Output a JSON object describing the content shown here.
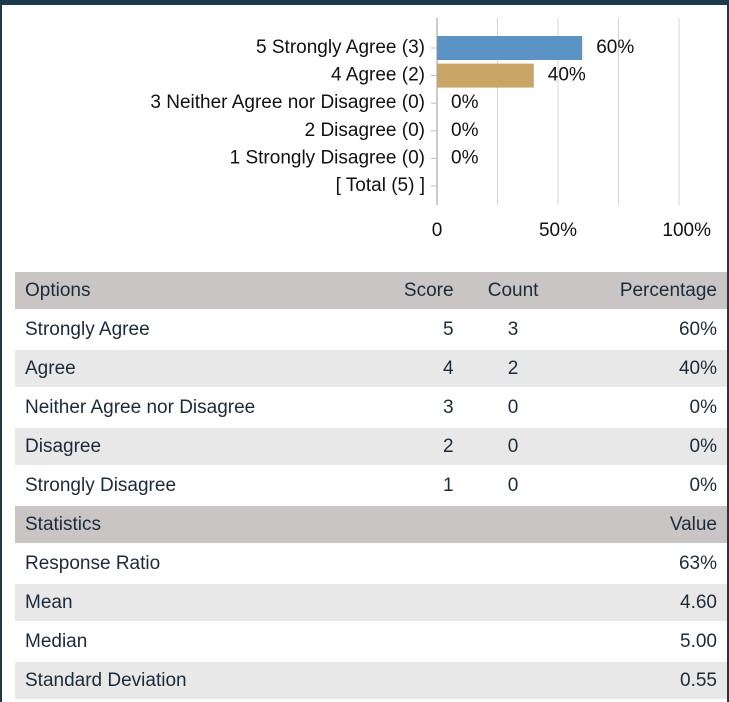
{
  "chart_data": {
    "type": "bar",
    "orientation": "horizontal",
    "categories": [
      "5 Strongly Agree (3)",
      "4 Agree (2)",
      "3 Neither Agree nor Disagree (0)",
      "2 Disagree (0)",
      "1 Strongly Disagree (0)",
      "[ Total (5) ]"
    ],
    "values": [
      60,
      40,
      0,
      0,
      0,
      null
    ],
    "value_labels": [
      "60%",
      "40%",
      "0%",
      "0%",
      "0%",
      null
    ],
    "colors": [
      "#5b93c4",
      "#c9a567",
      "#5b93c4",
      "#5b93c4",
      "#5b93c4",
      null
    ],
    "xlim": [
      0,
      100
    ],
    "xticks": [
      0,
      {
        "value": 50,
        "label": "50%"
      },
      {
        "value": 100,
        "label": "100%"
      }
    ],
    "xgrid": [
      0,
      25,
      50,
      75,
      100
    ],
    "grid": true
  },
  "options_table": {
    "columns": [
      "Options",
      "Score",
      "Count",
      "Percentage"
    ],
    "rows": [
      [
        "Strongly Agree",
        5,
        3,
        "60%"
      ],
      [
        "Agree",
        4,
        2,
        "40%"
      ],
      [
        "Neither Agree nor Disagree",
        3,
        0,
        "0%"
      ],
      [
        "Disagree",
        2,
        0,
        "0%"
      ],
      [
        "Strongly Disagree",
        1,
        0,
        "0%"
      ]
    ]
  },
  "statistics_table": {
    "columns": [
      "Statistics",
      "Value"
    ],
    "rows": [
      [
        "Response Ratio",
        "63%"
      ],
      [
        "Mean",
        "4.60"
      ],
      [
        "Median",
        "5.00"
      ],
      [
        "Standard Deviation",
        "0.55"
      ]
    ]
  }
}
